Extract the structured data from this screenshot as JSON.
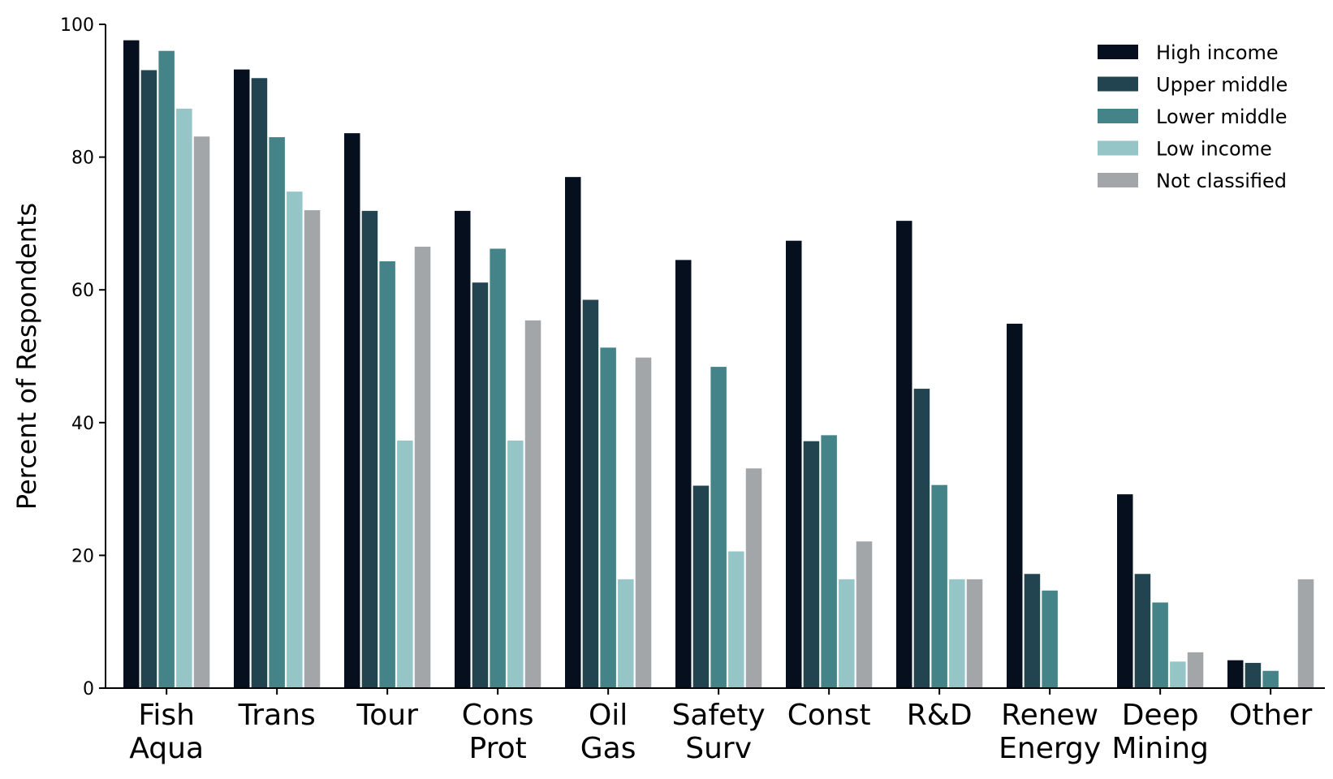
{
  "chart_data": {
    "type": "bar",
    "title": "",
    "xlabel": "",
    "ylabel": "Percent of Respondents",
    "ylim": [
      0,
      100
    ],
    "yticks": [
      0,
      20,
      40,
      60,
      80,
      100
    ],
    "grid": false,
    "legend_position": "top-right",
    "categories": [
      [
        "Fish",
        "Aqua"
      ],
      [
        "Trans"
      ],
      [
        "Tour"
      ],
      [
        "Cons",
        "Prot"
      ],
      [
        "Oil",
        "Gas"
      ],
      [
        "Safety",
        "Surv"
      ],
      [
        "Const"
      ],
      [
        "R&D"
      ],
      [
        "Renew",
        "Energy"
      ],
      [
        "Deep",
        "Mining"
      ],
      [
        "Other"
      ]
    ],
    "series": [
      {
        "name": "High income",
        "color": "#050f1e",
        "values": [
          97.6,
          93.2,
          83.6,
          71.9,
          77.0,
          64.5,
          67.4,
          70.4,
          54.9,
          29.2,
          4.2
        ]
      },
      {
        "name": "Upper middle",
        "color": "#224450",
        "values": [
          93.1,
          91.9,
          71.9,
          61.1,
          58.5,
          30.5,
          37.2,
          45.1,
          17.2,
          17.2,
          3.8
        ]
      },
      {
        "name": "Lower middle",
        "color": "#448489",
        "values": [
          96.0,
          83.0,
          64.3,
          66.2,
          51.3,
          48.4,
          38.1,
          30.6,
          14.7,
          12.9,
          2.6
        ]
      },
      {
        "name": "Low income",
        "color": "#96c5c7",
        "values": [
          87.3,
          74.8,
          37.3,
          37.3,
          16.4,
          20.6,
          16.4,
          16.4,
          0,
          4.0,
          0
        ]
      },
      {
        "name": "Not classified",
        "color": "#a3a6a8",
        "values": [
          83.1,
          72.0,
          66.5,
          55.4,
          49.8,
          33.1,
          22.1,
          16.4,
          0,
          5.4,
          16.4
        ]
      }
    ]
  }
}
